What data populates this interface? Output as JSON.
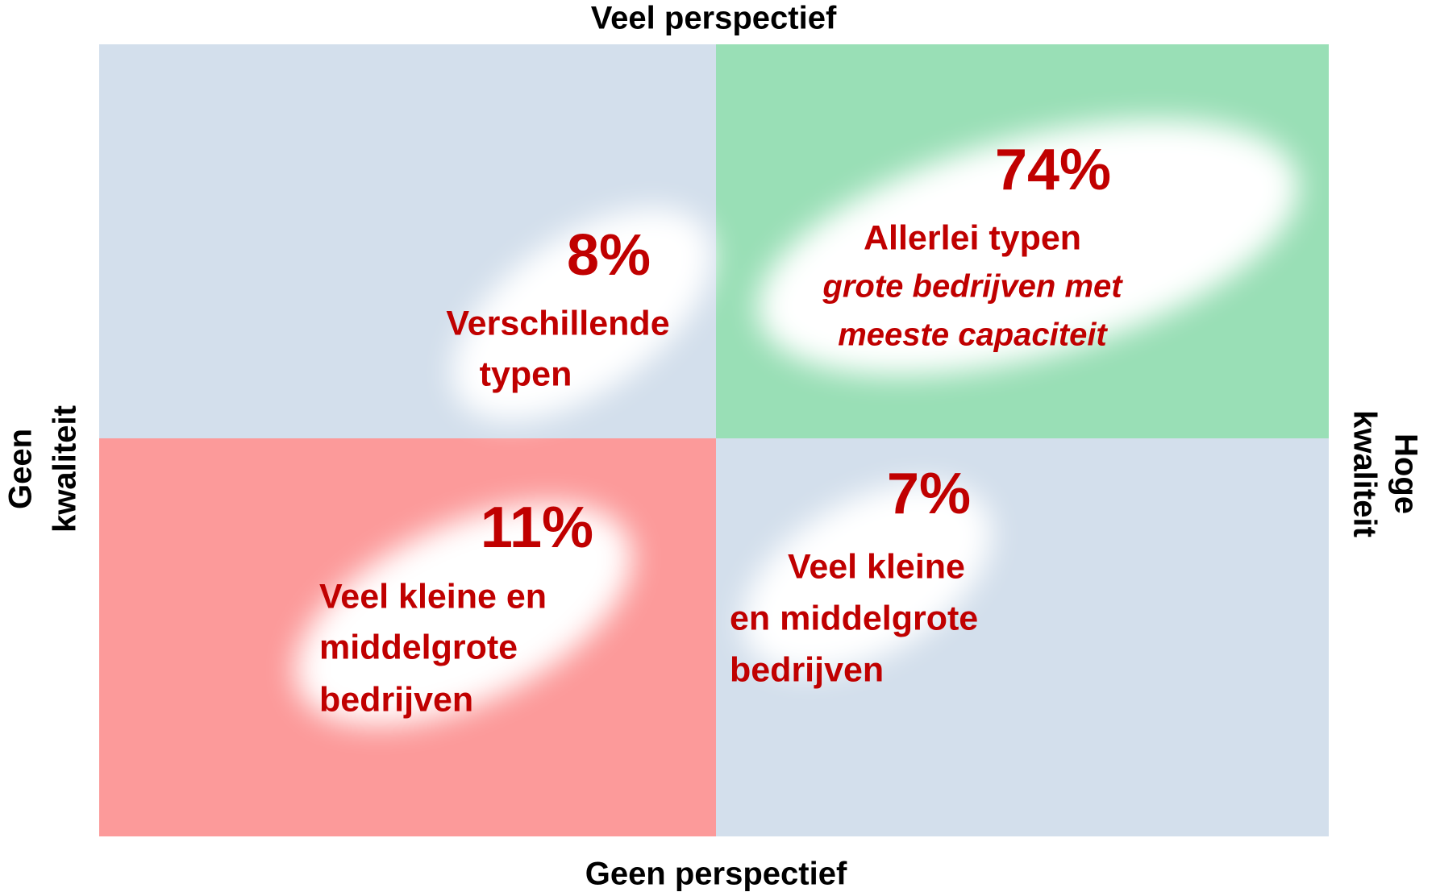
{
  "axes": {
    "top": "Veel perspectief",
    "bottom": "Geen perspectief",
    "left": [
      "Geen",
      "kwaliteit"
    ],
    "right": [
      "Hoge",
      "kwaliteit"
    ]
  },
  "quadrants": [
    {
      "percent": "8%",
      "lines": [
        "Verschillende",
        "typen"
      ]
    },
    {
      "percent": "74%",
      "lines": [
        "Allerlei typen"
      ],
      "italic_lines": [
        "grote bedrijven met",
        "meeste capaciteit"
      ]
    },
    {
      "percent": "11%",
      "lines": [
        "Veel kleine en",
        "middelgrote",
        "bedrijven"
      ]
    },
    {
      "percent": "7%",
      "lines": [
        "Veel kleine",
        "en middelgrote",
        "bedrijven"
      ]
    }
  ]
}
